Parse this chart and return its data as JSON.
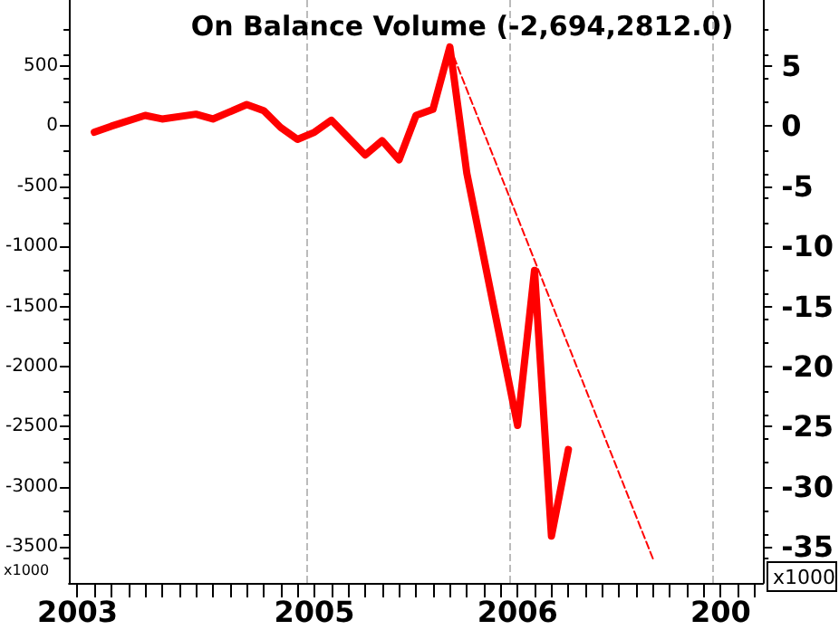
{
  "chart_data": {
    "type": "line",
    "title": "On Balance Volume (-2,694,2812.0)",
    "categories": [
      "2003",
      null,
      null,
      null,
      null,
      null,
      null,
      null,
      null,
      null,
      null,
      null,
      null,
      null,
      "2005",
      null,
      null,
      null,
      null,
      null,
      null,
      null,
      null,
      null,
      null,
      null,
      "2006",
      null,
      null,
      null,
      null,
      null,
      null,
      null,
      null,
      null,
      null,
      null,
      "200",
      null,
      null
    ],
    "series": [
      {
        "color": "#ff0000",
        "values": [
          null,
          -50,
          0,
          null,
          90,
          60,
          null,
          100,
          60,
          null,
          180,
          130,
          -10,
          -110,
          -50,
          50,
          null,
          -240,
          -120,
          -280,
          90,
          140,
          660,
          -390,
          null,
          null,
          -2490,
          -1200,
          -3410,
          -2690,
          null,
          null,
          null,
          null,
          null,
          null,
          null,
          null,
          null,
          null,
          null
        ]
      },
      {
        "color": "#ff0000",
        "line_style": "dashed",
        "values": [
          null,
          null,
          null,
          null,
          null,
          null,
          null,
          null,
          null,
          null,
          null,
          null,
          null,
          null,
          null,
          null,
          null,
          null,
          null,
          null,
          null,
          null,
          660,
          null,
          null,
          null,
          null,
          null,
          null,
          null,
          null,
          null,
          null,
          null,
          -3600,
          null,
          null,
          null,
          null,
          null,
          null
        ]
      }
    ],
    "ylim": [
      -3800,
      1050
    ],
    "yticks": [
      -3500,
      -3000,
      -2500,
      -2000,
      -1500,
      -1000,
      -500,
      0,
      500
    ],
    "y2lim": [
      -38,
      10.5
    ],
    "y2ticks": [
      -35,
      -30,
      -25,
      -20,
      -15,
      -10,
      -5,
      0,
      5
    ],
    "annotations": [
      "x1000",
      "x1000"
    ],
    "grid": "x",
    "line_style": "solid"
  }
}
